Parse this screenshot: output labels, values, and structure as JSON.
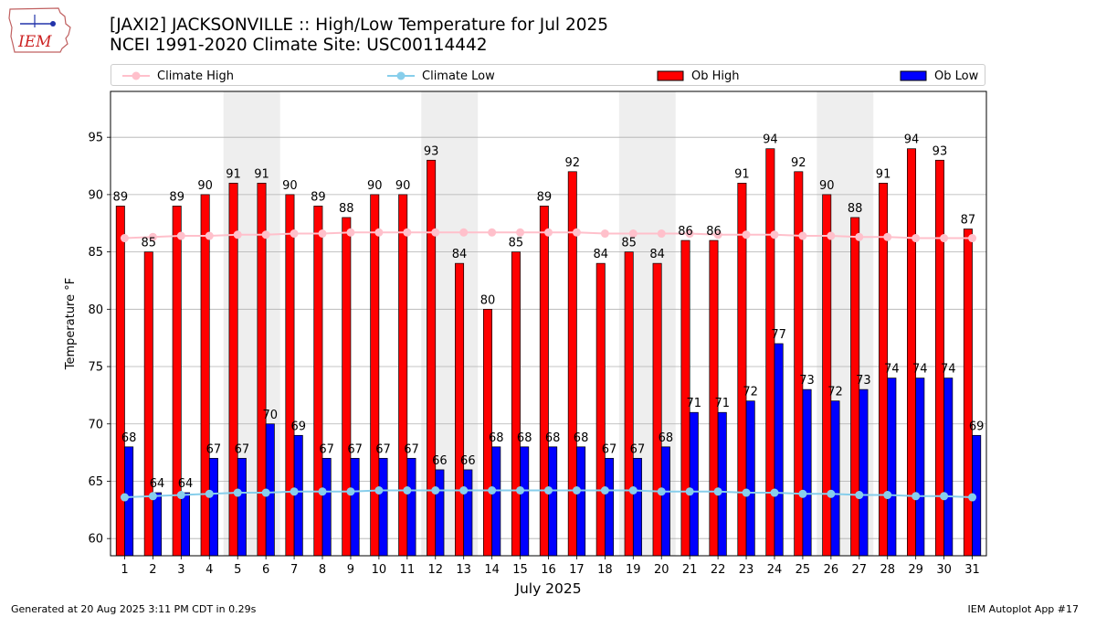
{
  "logo": {
    "text": "IEM",
    "icon": "iowa-state-outline-icon"
  },
  "header": {
    "title_line1": "[JAXI2] JACKSONVILLE :: High/Low Temperature for Jul 2025",
    "title_line2": "NCEI 1991-2020 Climate Site: USC00114442"
  },
  "legend": {
    "placement": "top, above plot",
    "items": [
      {
        "label": "Climate High",
        "color": "#ffc0cb",
        "kind": "line-marker"
      },
      {
        "label": "Climate Low",
        "color": "#87ceeb",
        "kind": "line-marker"
      },
      {
        "label": "Ob High",
        "color": "#ff0000",
        "kind": "bar"
      },
      {
        "label": "Ob Low",
        "color": "#0000ff",
        "kind": "bar"
      }
    ]
  },
  "footer": {
    "left": "Generated at 20 Aug 2025 3:11 PM CDT in 0.29s",
    "right": "IEM Autoplot App #17"
  },
  "chart_data": {
    "type": "bar",
    "title": "[JAXI2] JACKSONVILLE :: High/Low Temperature for Jul 2025",
    "subtitle": "NCEI 1991-2020 Climate Site: USC00114442",
    "xlabel": "July 2025",
    "ylabel": "Temperature °F",
    "ylim": [
      58.5,
      99
    ],
    "yticks": [
      60,
      65,
      70,
      75,
      80,
      85,
      90,
      95
    ],
    "grid": true,
    "weekend_shading": [
      [
        5,
        6
      ],
      [
        12,
        13
      ],
      [
        19,
        20
      ],
      [
        26,
        27
      ]
    ],
    "categories": [
      1,
      2,
      3,
      4,
      5,
      6,
      7,
      8,
      9,
      10,
      11,
      12,
      13,
      14,
      15,
      16,
      17,
      18,
      19,
      20,
      21,
      22,
      23,
      24,
      25,
      26,
      27,
      28,
      29,
      30,
      31
    ],
    "series": [
      {
        "name": "Ob High",
        "kind": "bar",
        "color": "#ff0000",
        "values": [
          89,
          85,
          89,
          90,
          91,
          91,
          90,
          89,
          88,
          90,
          90,
          93,
          84,
          80,
          85,
          89,
          92,
          84,
          85,
          84,
          86,
          86,
          91,
          94,
          92,
          90,
          88,
          91,
          94,
          93,
          87
        ]
      },
      {
        "name": "Ob Low",
        "kind": "bar",
        "color": "#0000ff",
        "values": [
          68,
          64,
          64,
          67,
          67,
          70,
          69,
          67,
          67,
          67,
          67,
          66,
          66,
          68,
          68,
          68,
          68,
          67,
          67,
          68,
          71,
          71,
          72,
          77,
          73,
          72,
          73,
          74,
          74,
          74,
          69
        ]
      },
      {
        "name": "Climate High",
        "kind": "line",
        "color": "#ffc0cb",
        "values": [
          86.2,
          86.3,
          86.4,
          86.4,
          86.5,
          86.5,
          86.6,
          86.6,
          86.7,
          86.7,
          86.7,
          86.7,
          86.7,
          86.7,
          86.7,
          86.7,
          86.7,
          86.6,
          86.6,
          86.6,
          86.6,
          86.5,
          86.5,
          86.5,
          86.4,
          86.4,
          86.3,
          86.3,
          86.2,
          86.2,
          86.2
        ]
      },
      {
        "name": "Climate Low",
        "kind": "line",
        "color": "#87ceeb",
        "values": [
          63.6,
          63.7,
          63.8,
          63.9,
          64.0,
          64.0,
          64.1,
          64.1,
          64.1,
          64.2,
          64.2,
          64.2,
          64.2,
          64.2,
          64.2,
          64.2,
          64.2,
          64.2,
          64.2,
          64.1,
          64.1,
          64.1,
          64.0,
          64.0,
          63.9,
          63.9,
          63.8,
          63.8,
          63.7,
          63.7,
          63.6
        ]
      }
    ]
  }
}
